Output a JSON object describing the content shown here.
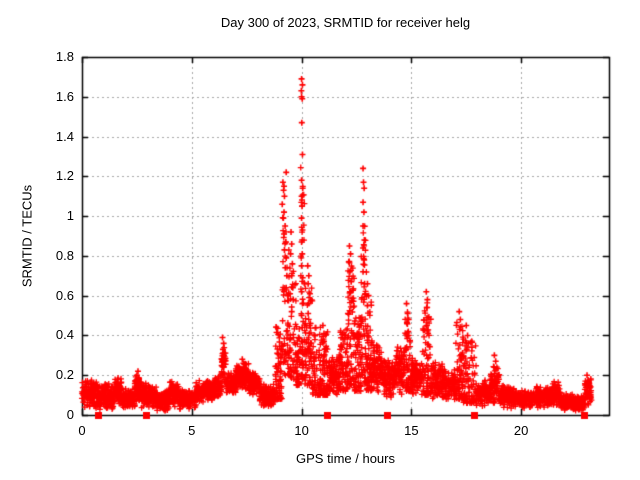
{
  "chart_data": {
    "type": "scatter",
    "title": "Day 300 of 2023, SRMTID for receiver helg",
    "xlabel": "GPS time / hours",
    "ylabel": "SRMTID / TECUs",
    "xlim": [
      0,
      24
    ],
    "ylim": [
      0,
      1.8
    ],
    "xticks": [
      {
        "v": 0,
        "label": "0"
      },
      {
        "v": 5,
        "label": "5"
      },
      {
        "v": 10,
        "label": "10"
      },
      {
        "v": 15,
        "label": "15"
      },
      {
        "v": 20,
        "label": "20"
      }
    ],
    "yticks": [
      {
        "v": 0.0,
        "label": "0"
      },
      {
        "v": 0.2,
        "label": "0.2"
      },
      {
        "v": 0.4,
        "label": "0.4"
      },
      {
        "v": 0.6,
        "label": "0.6"
      },
      {
        "v": 0.8,
        "label": "0.8"
      },
      {
        "v": 1.0,
        "label": "1"
      },
      {
        "v": 1.2,
        "label": "1.2"
      },
      {
        "v": 1.4,
        "label": "1.4"
      },
      {
        "v": 1.6,
        "label": "1.6"
      },
      {
        "v": 1.8,
        "label": "1.8"
      }
    ],
    "grid": true,
    "legend": "none",
    "marker": "plus",
    "marker_color": "#ff0000",
    "grid_color": "#a6a6a6",
    "border_color": "#000000",
    "axis_markers": {
      "marker": "filled-square",
      "y": 0,
      "x": [
        0.73,
        2.9,
        11.15,
        13.9,
        17.85,
        22.86
      ]
    },
    "baseline_segments": [
      {
        "x0": 0.0,
        "x1": 0.73,
        "lo": 0.03,
        "hi": 0.18,
        "n": 150
      },
      {
        "x0": 0.73,
        "x1": 1.5,
        "lo": 0.02,
        "hi": 0.16,
        "n": 150
      },
      {
        "x0": 1.5,
        "x1": 1.8,
        "lo": 0.05,
        "hi": 0.2,
        "n": 70
      },
      {
        "x0": 1.8,
        "x1": 2.4,
        "lo": 0.03,
        "hi": 0.14,
        "n": 120
      },
      {
        "x0": 2.4,
        "x1": 2.7,
        "lo": 0.05,
        "hi": 0.22,
        "n": 70
      },
      {
        "x0": 2.7,
        "x1": 3.4,
        "lo": 0.03,
        "hi": 0.16,
        "n": 140
      },
      {
        "x0": 3.4,
        "x1": 4.0,
        "lo": 0.02,
        "hi": 0.13,
        "n": 120
      },
      {
        "x0": 4.0,
        "x1": 4.4,
        "lo": 0.04,
        "hi": 0.18,
        "n": 90
      },
      {
        "x0": 4.4,
        "x1": 5.2,
        "lo": 0.03,
        "hi": 0.13,
        "n": 150
      },
      {
        "x0": 5.2,
        "x1": 6.0,
        "lo": 0.06,
        "hi": 0.18,
        "n": 160
      },
      {
        "x0": 6.0,
        "x1": 6.35,
        "lo": 0.08,
        "hi": 0.2,
        "n": 70
      },
      {
        "x0": 6.35,
        "x1": 6.55,
        "lo": 0.15,
        "hi": 0.38,
        "n": 40
      },
      {
        "x0": 6.55,
        "x1": 7.0,
        "lo": 0.1,
        "hi": 0.22,
        "n": 90
      },
      {
        "x0": 7.0,
        "x1": 7.6,
        "lo": 0.12,
        "hi": 0.27,
        "n": 130
      },
      {
        "x0": 7.6,
        "x1": 8.1,
        "lo": 0.1,
        "hi": 0.22,
        "n": 110
      },
      {
        "x0": 8.1,
        "x1": 8.8,
        "lo": 0.03,
        "hi": 0.16,
        "n": 140
      },
      {
        "x0": 8.8,
        "x1": 9.1,
        "lo": 0.08,
        "hi": 0.45,
        "n": 70
      },
      {
        "x0": 9.1,
        "x1": 9.45,
        "lo": 0.2,
        "hi": 1.0,
        "n": 60
      },
      {
        "x0": 9.45,
        "x1": 9.75,
        "lo": 0.18,
        "hi": 0.75,
        "n": 45
      },
      {
        "x0": 9.75,
        "x1": 9.95,
        "lo": 0.15,
        "hi": 0.45,
        "n": 40
      },
      {
        "x0": 9.95,
        "x1": 10.15,
        "lo": 0.18,
        "hi": 1.25,
        "n": 45
      },
      {
        "x0": 10.15,
        "x1": 10.5,
        "lo": 0.15,
        "hi": 0.65,
        "n": 60
      },
      {
        "x0": 10.5,
        "x1": 10.9,
        "lo": 0.1,
        "hi": 0.45,
        "n": 70
      },
      {
        "x0": 10.9,
        "x1": 11.2,
        "lo": 0.1,
        "hi": 0.42,
        "n": 60
      },
      {
        "x0": 11.2,
        "x1": 11.7,
        "lo": 0.1,
        "hi": 0.3,
        "n": 90
      },
      {
        "x0": 11.7,
        "x1": 12.1,
        "lo": 0.12,
        "hi": 0.45,
        "n": 80
      },
      {
        "x0": 12.1,
        "x1": 12.4,
        "lo": 0.15,
        "hi": 0.78,
        "n": 70
      },
      {
        "x0": 12.4,
        "x1": 12.7,
        "lo": 0.12,
        "hi": 0.55,
        "n": 60
      },
      {
        "x0": 12.7,
        "x1": 12.95,
        "lo": 0.15,
        "hi": 0.95,
        "n": 55
      },
      {
        "x0": 12.95,
        "x1": 13.2,
        "lo": 0.12,
        "hi": 0.58,
        "n": 60
      },
      {
        "x0": 13.2,
        "x1": 13.7,
        "lo": 0.1,
        "hi": 0.38,
        "n": 100
      },
      {
        "x0": 13.7,
        "x1": 14.3,
        "lo": 0.08,
        "hi": 0.3,
        "n": 110
      },
      {
        "x0": 14.3,
        "x1": 14.7,
        "lo": 0.1,
        "hi": 0.35,
        "n": 80
      },
      {
        "x0": 14.7,
        "x1": 14.95,
        "lo": 0.12,
        "hi": 0.52,
        "n": 50
      },
      {
        "x0": 14.95,
        "x1": 15.5,
        "lo": 0.08,
        "hi": 0.3,
        "n": 100
      },
      {
        "x0": 15.5,
        "x1": 15.9,
        "lo": 0.1,
        "hi": 0.58,
        "n": 70
      },
      {
        "x0": 15.9,
        "x1": 16.4,
        "lo": 0.07,
        "hi": 0.28,
        "n": 90
      },
      {
        "x0": 16.4,
        "x1": 17.0,
        "lo": 0.06,
        "hi": 0.24,
        "n": 110
      },
      {
        "x0": 17.0,
        "x1": 17.35,
        "lo": 0.08,
        "hi": 0.48,
        "n": 60
      },
      {
        "x0": 17.35,
        "x1": 17.95,
        "lo": 0.06,
        "hi": 0.4,
        "n": 90
      },
      {
        "x0": 17.95,
        "x1": 18.6,
        "lo": 0.04,
        "hi": 0.18,
        "n": 110
      },
      {
        "x0": 18.6,
        "x1": 19.0,
        "lo": 0.04,
        "hi": 0.26,
        "n": 70
      },
      {
        "x0": 19.0,
        "x1": 19.8,
        "lo": 0.03,
        "hi": 0.15,
        "n": 140
      },
      {
        "x0": 19.8,
        "x1": 20.6,
        "lo": 0.03,
        "hi": 0.13,
        "n": 140
      },
      {
        "x0": 20.6,
        "x1": 21.3,
        "lo": 0.03,
        "hi": 0.15,
        "n": 130
      },
      {
        "x0": 21.3,
        "x1": 21.8,
        "lo": 0.04,
        "hi": 0.17,
        "n": 100
      },
      {
        "x0": 21.8,
        "x1": 22.4,
        "lo": 0.02,
        "hi": 0.11,
        "n": 120
      },
      {
        "x0": 22.4,
        "x1": 22.9,
        "lo": 0.02,
        "hi": 0.1,
        "n": 100
      },
      {
        "x0": 22.9,
        "x1": 23.2,
        "lo": 0.04,
        "hi": 0.2,
        "n": 60
      }
    ],
    "feature_points": [
      [
        6.4,
        0.39
      ],
      [
        6.45,
        0.36
      ],
      [
        6.42,
        0.33
      ],
      [
        6.46,
        0.3
      ],
      [
        6.4,
        0.27
      ],
      [
        6.44,
        0.24
      ],
      [
        7.3,
        0.28
      ],
      [
        7.35,
        0.26
      ],
      [
        2.55,
        0.22
      ],
      [
        2.5,
        0.2
      ],
      [
        9.3,
        1.22
      ],
      [
        9.15,
        1.17
      ],
      [
        9.2,
        1.15
      ],
      [
        9.18,
        1.13
      ],
      [
        9.22,
        1.1
      ],
      [
        9.12,
        1.06
      ],
      [
        9.2,
        1.02
      ],
      [
        9.17,
        0.99
      ],
      [
        9.25,
        0.95
      ],
      [
        9.2,
        0.91
      ],
      [
        9.28,
        0.87
      ],
      [
        9.22,
        0.83
      ],
      [
        9.3,
        0.79
      ],
      [
        9.26,
        0.74
      ],
      [
        9.33,
        0.7
      ],
      [
        9.3,
        0.64
      ],
      [
        9.38,
        0.6
      ],
      [
        9.52,
        0.92
      ],
      [
        9.55,
        0.86
      ],
      [
        9.5,
        0.81
      ],
      [
        9.58,
        0.76
      ],
      [
        9.55,
        0.7
      ],
      [
        9.6,
        0.64
      ],
      [
        9.62,
        0.58
      ],
      [
        9.55,
        0.52
      ],
      [
        10.0,
        1.69
      ],
      [
        10.04,
        1.66
      ],
      [
        9.99,
        1.63
      ],
      [
        10.0,
        1.6
      ],
      [
        10.03,
        1.59
      ],
      [
        10.01,
        1.47
      ],
      [
        10.04,
        1.31
      ],
      [
        10.0,
        1.18
      ],
      [
        10.05,
        1.14
      ],
      [
        10.0,
        1.1
      ],
      [
        10.02,
        1.05
      ],
      [
        10.0,
        0.99
      ],
      [
        10.04,
        0.93
      ],
      [
        10.0,
        0.87
      ],
      [
        10.03,
        0.81
      ],
      [
        10.0,
        0.75
      ],
      [
        10.05,
        0.69
      ],
      [
        10.0,
        0.62
      ],
      [
        10.04,
        0.56
      ],
      [
        10.0,
        0.5
      ],
      [
        10.03,
        0.44
      ],
      [
        10.0,
        0.37
      ],
      [
        10.05,
        0.31
      ],
      [
        10.0,
        0.26
      ],
      [
        10.28,
        0.75
      ],
      [
        10.33,
        0.7
      ],
      [
        10.3,
        0.66
      ],
      [
        10.38,
        0.61
      ],
      [
        10.33,
        0.56
      ],
      [
        10.3,
        0.51
      ],
      [
        10.4,
        0.46
      ],
      [
        10.35,
        0.41
      ],
      [
        10.32,
        0.36
      ],
      [
        10.4,
        0.31
      ],
      [
        10.36,
        0.27
      ],
      [
        10.97,
        0.45
      ],
      [
        11.02,
        0.41
      ],
      [
        11.0,
        0.37
      ],
      [
        11.05,
        0.33
      ],
      [
        12.18,
        0.85
      ],
      [
        12.23,
        0.81
      ],
      [
        12.15,
        0.77
      ],
      [
        12.2,
        0.72
      ],
      [
        12.26,
        0.67
      ],
      [
        12.2,
        0.62
      ],
      [
        12.8,
        1.24
      ],
      [
        12.82,
        1.17
      ],
      [
        12.85,
        1.14
      ],
      [
        12.8,
        1.07
      ],
      [
        12.84,
        1.02
      ],
      [
        12.8,
        0.95
      ],
      [
        12.86,
        0.88
      ],
      [
        12.8,
        0.84
      ],
      [
        12.85,
        0.78
      ],
      [
        12.8,
        0.72
      ],
      [
        12.87,
        0.66
      ],
      [
        12.9,
        0.61
      ],
      [
        13.0,
        0.66
      ],
      [
        13.05,
        0.6
      ],
      [
        13.0,
        0.55
      ],
      [
        14.78,
        0.56
      ],
      [
        14.83,
        0.51
      ],
      [
        14.8,
        0.46
      ],
      [
        14.86,
        0.42
      ],
      [
        15.68,
        0.62
      ],
      [
        15.73,
        0.58
      ],
      [
        15.7,
        0.54
      ],
      [
        15.76,
        0.49
      ],
      [
        15.7,
        0.45
      ],
      [
        15.76,
        0.41
      ],
      [
        17.18,
        0.52
      ],
      [
        17.23,
        0.48
      ],
      [
        17.2,
        0.43
      ],
      [
        17.5,
        0.45
      ],
      [
        17.56,
        0.4
      ],
      [
        17.6,
        0.36
      ],
      [
        17.52,
        0.33
      ],
      [
        18.78,
        0.3
      ],
      [
        18.84,
        0.27
      ],
      [
        23.0,
        0.2
      ],
      [
        23.07,
        0.17
      ],
      [
        23.1,
        0.15
      ]
    ]
  }
}
